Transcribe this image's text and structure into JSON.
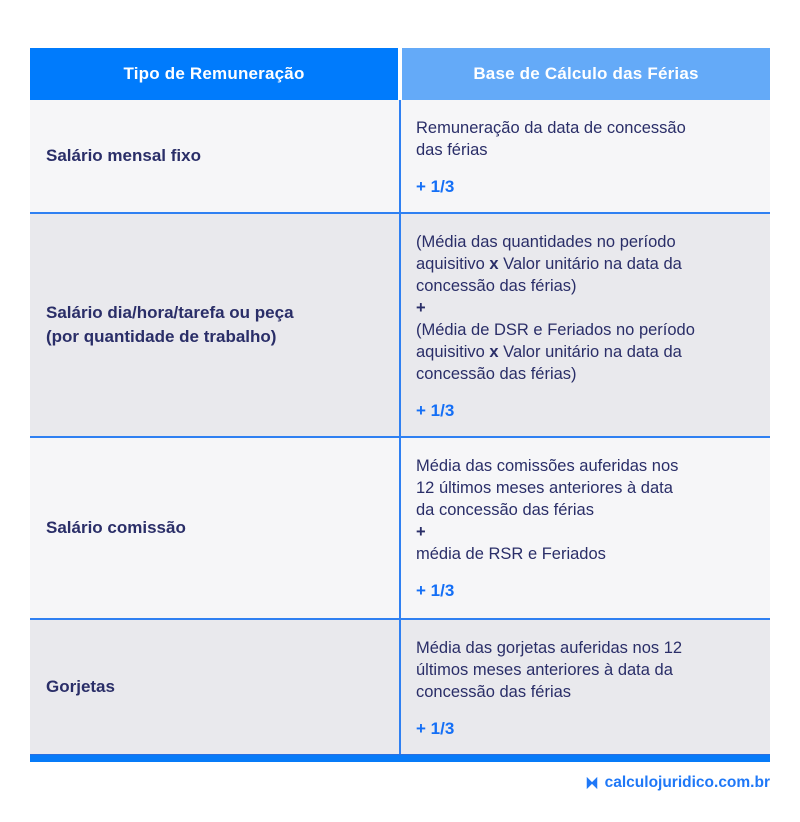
{
  "table": {
    "header": [
      {
        "label": "Tipo de Remuneração"
      },
      {
        "label": "Base de Cálculo das Férias"
      }
    ],
    "rows": [
      {
        "left_lines": [
          "Salário mensal fixo"
        ],
        "right_lines": [
          {
            "text": "Remuneração da data de concessão",
            "style": "normal"
          },
          {
            "text": "das férias",
            "style": "normal"
          },
          {
            "text": "",
            "style": "spacer"
          },
          {
            "text": "+ 1/3",
            "style": "accent"
          }
        ]
      },
      {
        "left_lines": [
          "Salário dia/hora/tarefa ou peça",
          "(por quantidade de trabalho)"
        ],
        "right_lines": [
          {
            "text": "(Média das quantidades no período",
            "style": "normal"
          },
          {
            "text": "aquisitivo x Valor unitário na data da",
            "style": "normal"
          },
          {
            "text": "concessão das férias)",
            "style": "normal"
          },
          {
            "text": "+",
            "style": "plus"
          },
          {
            "text": "(Média de DSR e Feriados no período",
            "style": "normal"
          },
          {
            "text": "aquisitivo x Valor unitário na data da",
            "style": "normal"
          },
          {
            "text": "concessão das férias)",
            "style": "normal"
          },
          {
            "text": "",
            "style": "spacer"
          },
          {
            "text": "+ 1/3",
            "style": "accent"
          }
        ]
      },
      {
        "left_lines": [
          "Salário comissão"
        ],
        "right_lines": [
          {
            "text": "Média das comissões auferidas nos",
            "style": "normal"
          },
          {
            "text": "12 últimos meses anteriores à data",
            "style": "normal"
          },
          {
            "text": "da concessão das férias",
            "style": "normal"
          },
          {
            "text": "+",
            "style": "plus"
          },
          {
            "text": "média de RSR e Feriados",
            "style": "normal"
          },
          {
            "text": "",
            "style": "spacer"
          },
          {
            "text": "+ 1/3",
            "style": "accent"
          }
        ]
      },
      {
        "left_lines": [
          "Gorjetas"
        ],
        "right_lines": [
          {
            "text": "Média das gorjetas auferidas nos 12",
            "style": "normal"
          },
          {
            "text": "últimos meses anteriores à data da",
            "style": "normal"
          },
          {
            "text": "concessão das férias",
            "style": "normal"
          },
          {
            "text": "",
            "style": "spacer"
          },
          {
            "text": "+ 1/3",
            "style": "accent"
          }
        ]
      }
    ]
  },
  "footer": {
    "brand": "calculojuridico.com.br"
  },
  "colors": {
    "header_left_bg": "#007bfc",
    "header_right_bg": "#64aaf8",
    "row_light_bg": "#f6f6f8",
    "row_gray_bg": "#e9e9ed",
    "text_navy": "#2a2e68",
    "accent_blue": "#146ff6",
    "divider_blue": "#2f80f2",
    "bottom_bar_blue": "#077bf8"
  }
}
